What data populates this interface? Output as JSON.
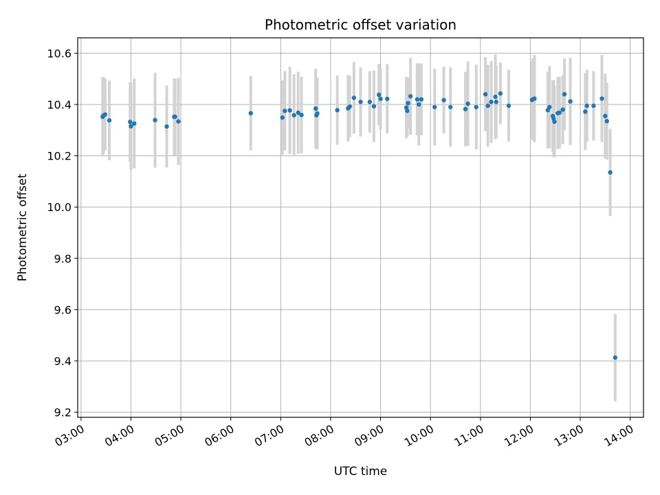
{
  "chart_data": {
    "type": "scatter",
    "title": "Photometric offset variation",
    "xlabel": "UTC time",
    "ylabel": "Photometric offset",
    "x_range": [
      "02:56",
      "14:16"
    ],
    "ylim": [
      9.18,
      10.66
    ],
    "y_ticks": [
      "9.2",
      "9.4",
      "9.6",
      "9.8",
      "10.0",
      "10.2",
      "10.4",
      "10.6"
    ],
    "x_ticks": [
      "03:00",
      "04:00",
      "05:00",
      "06:00",
      "07:00",
      "08:00",
      "09:00",
      "10:00",
      "11:00",
      "12:00",
      "13:00",
      "14:00"
    ],
    "grid": true,
    "colors": {
      "points": "#1f77b4",
      "errorbars": "#d3d3d3",
      "grid": "#b0b0b0"
    },
    "series": [
      {
        "values": [
          {
            "x": "03:26",
            "y": 10.352,
            "err": 0.155
          },
          {
            "x": "03:27",
            "y": 10.357,
            "err": 0.15
          },
          {
            "x": "03:29",
            "y": 10.361,
            "err": 0.14
          },
          {
            "x": "03:34",
            "y": 10.338,
            "err": 0.155
          },
          {
            "x": "03:59",
            "y": 10.332,
            "err": 0.155
          },
          {
            "x": "04:00",
            "y": 10.315,
            "err": 0.17
          },
          {
            "x": "04:04",
            "y": 10.326,
            "err": 0.175
          },
          {
            "x": "04:29",
            "y": 10.339,
            "err": 0.185
          },
          {
            "x": "04:43",
            "y": 10.314,
            "err": 0.16
          },
          {
            "x": "04:52",
            "y": 10.352,
            "err": 0.15
          },
          {
            "x": "04:53",
            "y": 10.352,
            "err": 0.15
          },
          {
            "x": "04:57",
            "y": 10.334,
            "err": 0.17
          },
          {
            "x": "06:24",
            "y": 10.366,
            "err": 0.145
          },
          {
            "x": "07:02",
            "y": 10.349,
            "err": 0.145
          },
          {
            "x": "07:05",
            "y": 10.375,
            "err": 0.155
          },
          {
            "x": "07:11",
            "y": 10.377,
            "err": 0.17
          },
          {
            "x": "07:16",
            "y": 10.358,
            "err": 0.16
          },
          {
            "x": "07:21",
            "y": 10.368,
            "err": 0.16
          },
          {
            "x": "07:25",
            "y": 10.359,
            "err": 0.15
          },
          {
            "x": "07:42",
            "y": 10.384,
            "err": 0.155
          },
          {
            "x": "07:43",
            "y": 10.358,
            "err": 0.13
          },
          {
            "x": "07:44",
            "y": 10.365,
            "err": 0.14
          },
          {
            "x": "08:08",
            "y": 10.378,
            "err": 0.135
          },
          {
            "x": "08:21",
            "y": 10.385,
            "err": 0.13
          },
          {
            "x": "08:23",
            "y": 10.392,
            "err": 0.12
          },
          {
            "x": "08:28",
            "y": 10.426,
            "err": 0.14
          },
          {
            "x": "08:36",
            "y": 10.41,
            "err": 0.135
          },
          {
            "x": "08:47",
            "y": 10.41,
            "err": 0.12
          },
          {
            "x": "08:52",
            "y": 10.393,
            "err": 0.14
          },
          {
            "x": "08:58",
            "y": 10.438,
            "err": 0.12
          },
          {
            "x": "09:00",
            "y": 10.422,
            "err": 0.12
          },
          {
            "x": "09:08",
            "y": 10.422,
            "err": 0.135
          },
          {
            "x": "09:31",
            "y": 10.388,
            "err": 0.12
          },
          {
            "x": "09:32",
            "y": 10.375,
            "err": 0.1
          },
          {
            "x": "09:33",
            "y": 10.405,
            "err": 0.1
          },
          {
            "x": "09:36",
            "y": 10.432,
            "err": 0.15
          },
          {
            "x": "09:44",
            "y": 10.42,
            "err": 0.14
          },
          {
            "x": "09:46",
            "y": 10.4,
            "err": 0.16
          },
          {
            "x": "09:49",
            "y": 10.42,
            "err": 0.14
          },
          {
            "x": "10:05",
            "y": 10.39,
            "err": 0.15
          },
          {
            "x": "10:16",
            "y": 10.417,
            "err": 0.13
          },
          {
            "x": "10:24",
            "y": 10.39,
            "err": 0.155
          },
          {
            "x": "10:42",
            "y": 10.382,
            "err": 0.145
          },
          {
            "x": "10:45",
            "y": 10.403,
            "err": 0.165
          },
          {
            "x": "10:55",
            "y": 10.39,
            "err": 0.165
          },
          {
            "x": "11:06",
            "y": 10.44,
            "err": 0.145
          },
          {
            "x": "11:09",
            "y": 10.395,
            "err": 0.16
          },
          {
            "x": "11:13",
            "y": 10.41,
            "err": 0.16
          },
          {
            "x": "11:18",
            "y": 10.43,
            "err": 0.165
          },
          {
            "x": "11:19",
            "y": 10.41,
            "err": 0.14
          },
          {
            "x": "11:24",
            "y": 10.443,
            "err": 0.12
          },
          {
            "x": "11:34",
            "y": 10.395,
            "err": 0.14
          },
          {
            "x": "12:02",
            "y": 10.418,
            "err": 0.15
          },
          {
            "x": "12:03",
            "y": 10.42,
            "err": 0.16
          },
          {
            "x": "12:05",
            "y": 10.423,
            "err": 0.17
          },
          {
            "x": "12:21",
            "y": 10.378,
            "err": 0.15
          },
          {
            "x": "12:23",
            "y": 10.39,
            "err": 0.16
          },
          {
            "x": "12:27",
            "y": 10.355,
            "err": 0.14
          },
          {
            "x": "12:28",
            "y": 10.345,
            "err": 0.15
          },
          {
            "x": "12:29",
            "y": 10.333,
            "err": 0.14
          },
          {
            "x": "12:33",
            "y": 10.366,
            "err": 0.14
          },
          {
            "x": "12:35",
            "y": 10.368,
            "err": 0.14
          },
          {
            "x": "12:39",
            "y": 10.38,
            "err": 0.135
          },
          {
            "x": "12:41",
            "y": 10.44,
            "err": 0.14
          },
          {
            "x": "12:48",
            "y": 10.412,
            "err": 0.17
          },
          {
            "x": "13:06",
            "y": 10.372,
            "err": 0.15
          },
          {
            "x": "13:08",
            "y": 10.395,
            "err": 0.14
          },
          {
            "x": "13:16",
            "y": 10.395,
            "err": 0.135
          },
          {
            "x": "13:26",
            "y": 10.423,
            "err": 0.17
          },
          {
            "x": "13:30",
            "y": 10.355,
            "err": 0.165
          },
          {
            "x": "13:32",
            "y": 10.335,
            "err": 0.15
          },
          {
            "x": "13:36",
            "y": 10.135,
            "err": 0.17
          },
          {
            "x": "13:42",
            "y": 9.413,
            "err": 0.17
          }
        ]
      }
    ]
  }
}
